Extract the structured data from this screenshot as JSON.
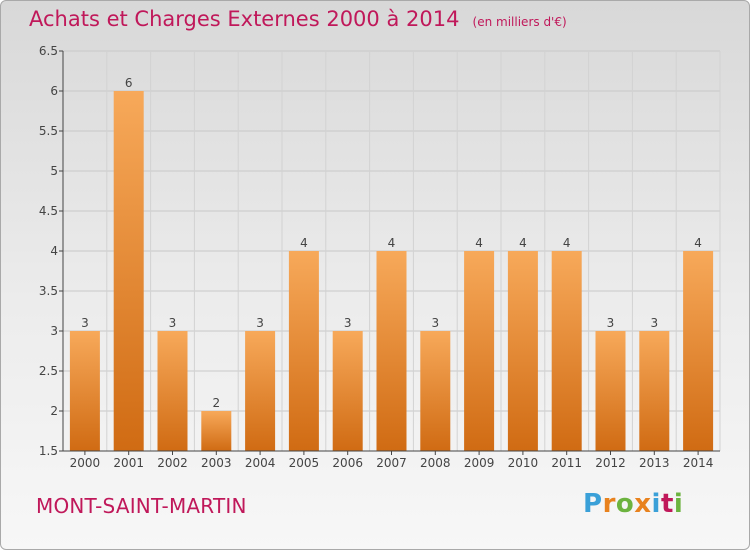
{
  "title": "Achats et Charges Externes 2000 à 2014",
  "unit_note": "(en milliers d'€)",
  "commune": "MONT-SAINT-MARTIN",
  "logo": {
    "letters": [
      "P",
      "r",
      "o",
      "x",
      "i",
      "t",
      "i"
    ],
    "colors": [
      "#3aa0d8",
      "#e8821e",
      "#6cb33f",
      "#e8821e",
      "#3aa0d8",
      "#c0185a",
      "#6cb33f"
    ]
  },
  "colors": {
    "title": "#c0185a",
    "bar_light": "#f7a95a",
    "bar_dark": "#d06b13"
  },
  "chart_data": {
    "type": "bar",
    "categories": [
      "2000",
      "2001",
      "2002",
      "2003",
      "2004",
      "2005",
      "2006",
      "2007",
      "2008",
      "2009",
      "2010",
      "2011",
      "2012",
      "2013",
      "2014"
    ],
    "values": [
      3,
      6,
      3,
      2,
      3,
      4,
      3,
      4,
      3,
      4,
      4,
      4,
      3,
      3,
      4
    ],
    "data_labels": [
      "3",
      "6",
      "3",
      "2",
      "3",
      "4",
      "3",
      "4",
      "3",
      "4",
      "4",
      "4",
      "3",
      "3",
      "4"
    ],
    "ylim": [
      1.5,
      6.5
    ],
    "yticks": [
      "1.5",
      "2",
      "2.5",
      "3",
      "3.5",
      "4",
      "4.5",
      "5",
      "5.5",
      "6",
      "6.5"
    ],
    "grid": true,
    "xlabel": "",
    "ylabel": ""
  }
}
